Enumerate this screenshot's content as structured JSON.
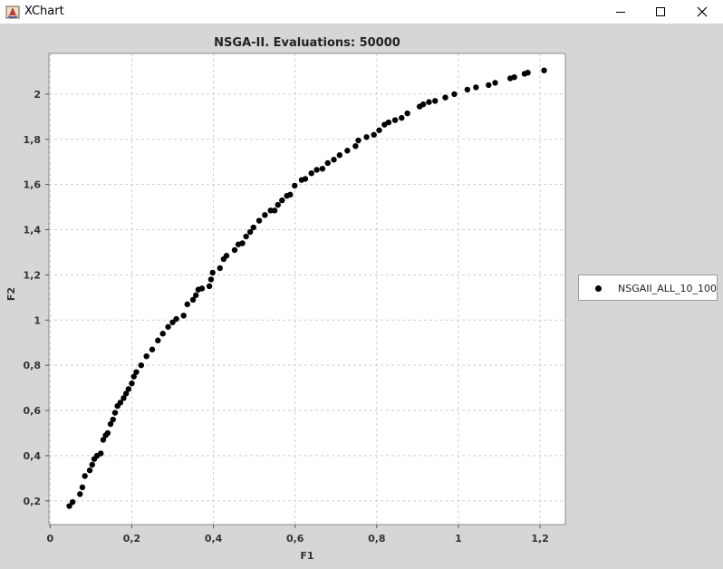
{
  "window": {
    "title": "XChart"
  },
  "chart_data": {
    "type": "scatter",
    "title": "NSGA-II. Evaluations: 50000",
    "xlabel": "F1",
    "ylabel": "F2",
    "xlim": [
      -0.003,
      1.262
    ],
    "ylim": [
      0.095,
      2.18
    ],
    "xticks": [
      0,
      0.2,
      0.4,
      0.6,
      0.8,
      1,
      1.2
    ],
    "xtick_labels": [
      "0",
      "0,2",
      "0,4",
      "0,6",
      "0,8",
      "1",
      "1,2"
    ],
    "yticks": [
      0.2,
      0.4,
      0.6,
      0.8,
      1,
      1.2,
      1.4,
      1.6,
      1.8,
      2
    ],
    "ytick_labels": [
      "0,2",
      "0,4",
      "0,6",
      "0,8",
      "1",
      "1,2",
      "1,4",
      "1,6",
      "1,8",
      "2"
    ],
    "grid": true,
    "legend": "right",
    "series": [
      {
        "name": "NSGAII_ALL_10_100",
        "color": "#000000",
        "points": [
          [
            0.047,
            0.177
          ],
          [
            0.055,
            0.195
          ],
          [
            0.073,
            0.23
          ],
          [
            0.079,
            0.26
          ],
          [
            0.085,
            0.31
          ],
          [
            0.097,
            0.335
          ],
          [
            0.103,
            0.36
          ],
          [
            0.108,
            0.385
          ],
          [
            0.115,
            0.4
          ],
          [
            0.124,
            0.41
          ],
          [
            0.13,
            0.47
          ],
          [
            0.136,
            0.49
          ],
          [
            0.141,
            0.5
          ],
          [
            0.148,
            0.54
          ],
          [
            0.154,
            0.56
          ],
          [
            0.159,
            0.59
          ],
          [
            0.165,
            0.62
          ],
          [
            0.172,
            0.635
          ],
          [
            0.18,
            0.655
          ],
          [
            0.186,
            0.675
          ],
          [
            0.192,
            0.695
          ],
          [
            0.2,
            0.72
          ],
          [
            0.205,
            0.75
          ],
          [
            0.211,
            0.77
          ],
          [
            0.223,
            0.8
          ],
          [
            0.236,
            0.84
          ],
          [
            0.25,
            0.87
          ],
          [
            0.264,
            0.91
          ],
          [
            0.276,
            0.94
          ],
          [
            0.289,
            0.97
          ],
          [
            0.3,
            0.99
          ],
          [
            0.309,
            1.005
          ],
          [
            0.327,
            1.02
          ],
          [
            0.336,
            1.07
          ],
          [
            0.35,
            1.09
          ],
          [
            0.357,
            1.11
          ],
          [
            0.363,
            1.135
          ],
          [
            0.372,
            1.14
          ],
          [
            0.39,
            1.15
          ],
          [
            0.394,
            1.18
          ],
          [
            0.398,
            1.21
          ],
          [
            0.416,
            1.23
          ],
          [
            0.425,
            1.27
          ],
          [
            0.432,
            1.285
          ],
          [
            0.452,
            1.31
          ],
          [
            0.461,
            1.335
          ],
          [
            0.471,
            1.34
          ],
          [
            0.48,
            1.37
          ],
          [
            0.49,
            1.39
          ],
          [
            0.498,
            1.41
          ],
          [
            0.512,
            1.44
          ],
          [
            0.526,
            1.465
          ],
          [
            0.54,
            1.485
          ],
          [
            0.55,
            1.485
          ],
          [
            0.558,
            1.51
          ],
          [
            0.568,
            1.53
          ],
          [
            0.58,
            1.55
          ],
          [
            0.588,
            1.555
          ],
          [
            0.599,
            1.595
          ],
          [
            0.616,
            1.62
          ],
          [
            0.625,
            1.625
          ],
          [
            0.64,
            1.65
          ],
          [
            0.653,
            1.665
          ],
          [
            0.667,
            1.67
          ],
          [
            0.68,
            1.695
          ],
          [
            0.695,
            1.71
          ],
          [
            0.709,
            1.73
          ],
          [
            0.728,
            1.75
          ],
          [
            0.748,
            1.77
          ],
          [
            0.755,
            1.795
          ],
          [
            0.775,
            1.81
          ],
          [
            0.793,
            1.82
          ],
          [
            0.806,
            1.84
          ],
          [
            0.819,
            1.865
          ],
          [
            0.829,
            1.875
          ],
          [
            0.845,
            1.885
          ],
          [
            0.861,
            1.895
          ],
          [
            0.875,
            1.915
          ],
          [
            0.905,
            1.945
          ],
          [
            0.914,
            1.955
          ],
          [
            0.928,
            1.965
          ],
          [
            0.943,
            1.97
          ],
          [
            0.968,
            1.985
          ],
          [
            0.99,
            2.0
          ],
          [
            1.022,
            2.02
          ],
          [
            1.043,
            2.03
          ],
          [
            1.074,
            2.04
          ],
          [
            1.09,
            2.05
          ],
          [
            1.127,
            2.07
          ],
          [
            1.137,
            2.075
          ],
          [
            1.162,
            2.09
          ],
          [
            1.17,
            2.095
          ],
          [
            1.21,
            2.105
          ]
        ]
      }
    ]
  }
}
